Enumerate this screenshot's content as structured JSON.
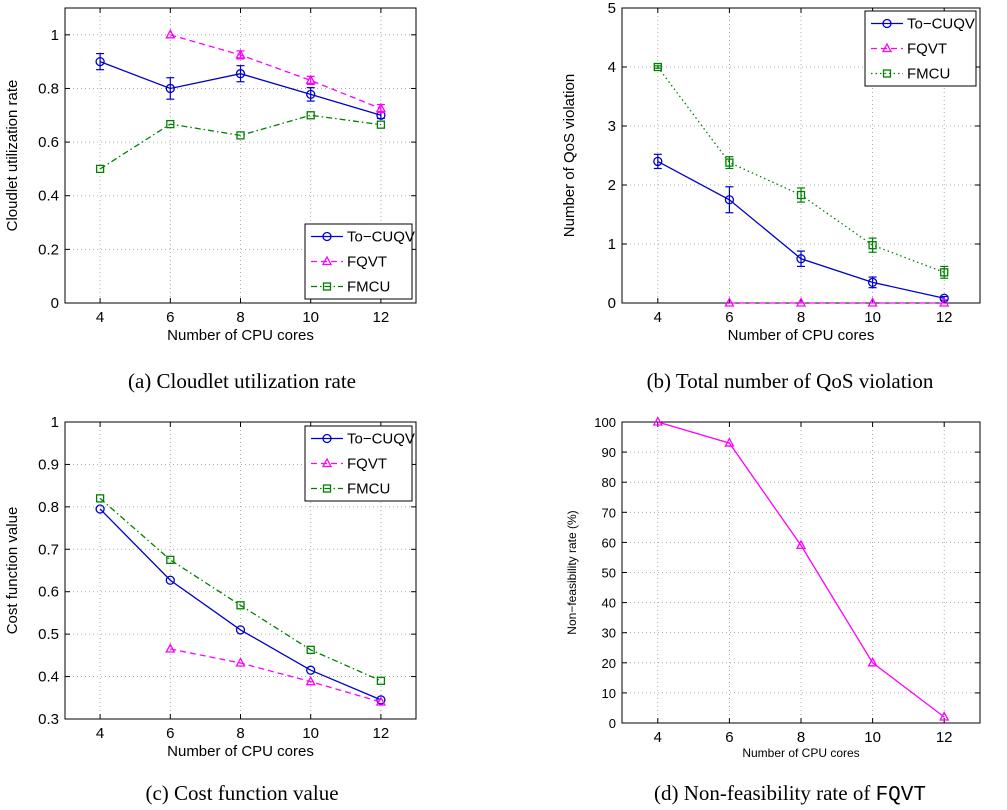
{
  "colors": {
    "To-CUQV": "#0000cc",
    "FQVT": "#ff00ff",
    "FMCU": "#008000"
  },
  "chart_data": [
    {
      "type": "line",
      "caption": "(a) Cloudlet utilization rate",
      "xlabel": "Number of CPU cores",
      "ylabel": "Cloudlet utilization rate",
      "x": [
        4,
        6,
        8,
        10,
        12
      ],
      "xlim": [
        3,
        13
      ],
      "ylim": [
        0,
        1.1
      ],
      "xticks": [
        4,
        6,
        8,
        10,
        12
      ],
      "yticks": [
        0,
        0.2,
        0.4,
        0.6,
        0.8,
        1
      ],
      "ytick_labels": [
        "0",
        "0.2",
        "0.4",
        "0.6",
        "0.8",
        "1"
      ],
      "grid": true,
      "legend_position": "bottom-right",
      "series": [
        {
          "name": "To−CUQV",
          "key": "To-CUQV",
          "style": "solid",
          "marker": "circle",
          "values": [
            0.9,
            0.8,
            0.855,
            0.778,
            0.7
          ],
          "errors": [
            0.03,
            0.04,
            0.03,
            0.025,
            0.012
          ]
        },
        {
          "name": "FQVT",
          "key": "FQVT",
          "style": "dashed",
          "marker": "triangle",
          "values": [
            null,
            1.0,
            0.925,
            0.83,
            0.725
          ],
          "errors": [
            null,
            0.0,
            0.015,
            0.015,
            0.015
          ]
        },
        {
          "name": "FMCU",
          "key": "FMCU",
          "style": "dashdot",
          "marker": "square",
          "values": [
            0.5,
            0.667,
            0.625,
            0.7,
            0.665
          ],
          "errors": [
            0.0,
            0.0,
            0.0,
            0.0,
            0.0
          ]
        }
      ]
    },
    {
      "type": "line",
      "caption": "(b) Total number of QoS violation",
      "xlabel": "Number of CPU cores",
      "ylabel": "Number of QoS violation",
      "x": [
        4,
        6,
        8,
        10,
        12
      ],
      "xlim": [
        3,
        13
      ],
      "ylim": [
        0,
        5
      ],
      "xticks": [
        4,
        6,
        8,
        10,
        12
      ],
      "yticks": [
        0,
        1,
        2,
        3,
        4,
        5
      ],
      "ytick_labels": [
        "0",
        "1",
        "2",
        "3",
        "4",
        "5"
      ],
      "grid": true,
      "legend_position": "top-right",
      "series": [
        {
          "name": "To−CUQV",
          "key": "To-CUQV",
          "style": "solid",
          "marker": "circle",
          "values": [
            2.4,
            1.75,
            0.75,
            0.35,
            0.08
          ],
          "errors": [
            0.12,
            0.22,
            0.13,
            0.09,
            0.03
          ]
        },
        {
          "name": "FQVT",
          "key": "FQVT",
          "style": "dashed",
          "marker": "triangle",
          "values": [
            null,
            0.0,
            0.0,
            0.0,
            0.0
          ],
          "errors": [
            null,
            0,
            0,
            0,
            0
          ]
        },
        {
          "name": "FMCU",
          "key": "FMCU",
          "style": "dotted",
          "marker": "square",
          "values": [
            4.0,
            2.38,
            1.83,
            0.98,
            0.52
          ],
          "errors": [
            0.02,
            0.1,
            0.12,
            0.12,
            0.1
          ]
        }
      ]
    },
    {
      "type": "line",
      "caption": "(c) Cost function value",
      "xlabel": "Number of CPU cores",
      "ylabel": "Cost function value",
      "x": [
        4,
        6,
        8,
        10,
        12
      ],
      "xlim": [
        3,
        13
      ],
      "ylim": [
        0.3,
        1
      ],
      "xticks": [
        4,
        6,
        8,
        10,
        12
      ],
      "yticks": [
        0.3,
        0.4,
        0.5,
        0.6,
        0.7,
        0.8,
        0.9,
        1
      ],
      "ytick_labels": [
        "0.3",
        "0.4",
        "0.5",
        "0.6",
        "0.7",
        "0.8",
        "0.9",
        "1"
      ],
      "grid": true,
      "legend_position": "top-right",
      "series": [
        {
          "name": "To−CUQV",
          "key": "To-CUQV",
          "style": "solid",
          "marker": "circle",
          "values": [
            0.795,
            0.627,
            0.51,
            0.415,
            0.345
          ]
        },
        {
          "name": "FQVT",
          "key": "FQVT",
          "style": "dashed",
          "marker": "triangle",
          "values": [
            null,
            0.465,
            0.432,
            0.388,
            0.34
          ]
        },
        {
          "name": "FMCU",
          "key": "FMCU",
          "style": "dashdot",
          "marker": "square",
          "values": [
            0.82,
            0.675,
            0.568,
            0.463,
            0.39
          ]
        }
      ]
    },
    {
      "type": "line",
      "caption_prefix": "(d) Non-feasibility rate of ",
      "caption_code": "FQVT",
      "xlabel": "Number of CPU cores",
      "ylabel": "Non−feasibility rate (%)",
      "x": [
        4,
        6,
        8,
        10,
        12
      ],
      "xlim": [
        3,
        13
      ],
      "ylim": [
        0,
        100
      ],
      "xticks": [
        4,
        6,
        8,
        10,
        12
      ],
      "yticks": [
        0,
        10,
        20,
        30,
        40,
        50,
        60,
        70,
        80,
        90,
        100
      ],
      "ytick_labels": [
        "0",
        "10",
        "20",
        "30",
        "40",
        "50",
        "60",
        "70",
        "80",
        "90",
        "100"
      ],
      "grid": true,
      "legend_position": "none",
      "series": [
        {
          "key": "FQVT",
          "style": "solid",
          "marker": "triangle",
          "values": [
            100,
            93,
            59,
            20,
            2
          ]
        }
      ]
    }
  ]
}
